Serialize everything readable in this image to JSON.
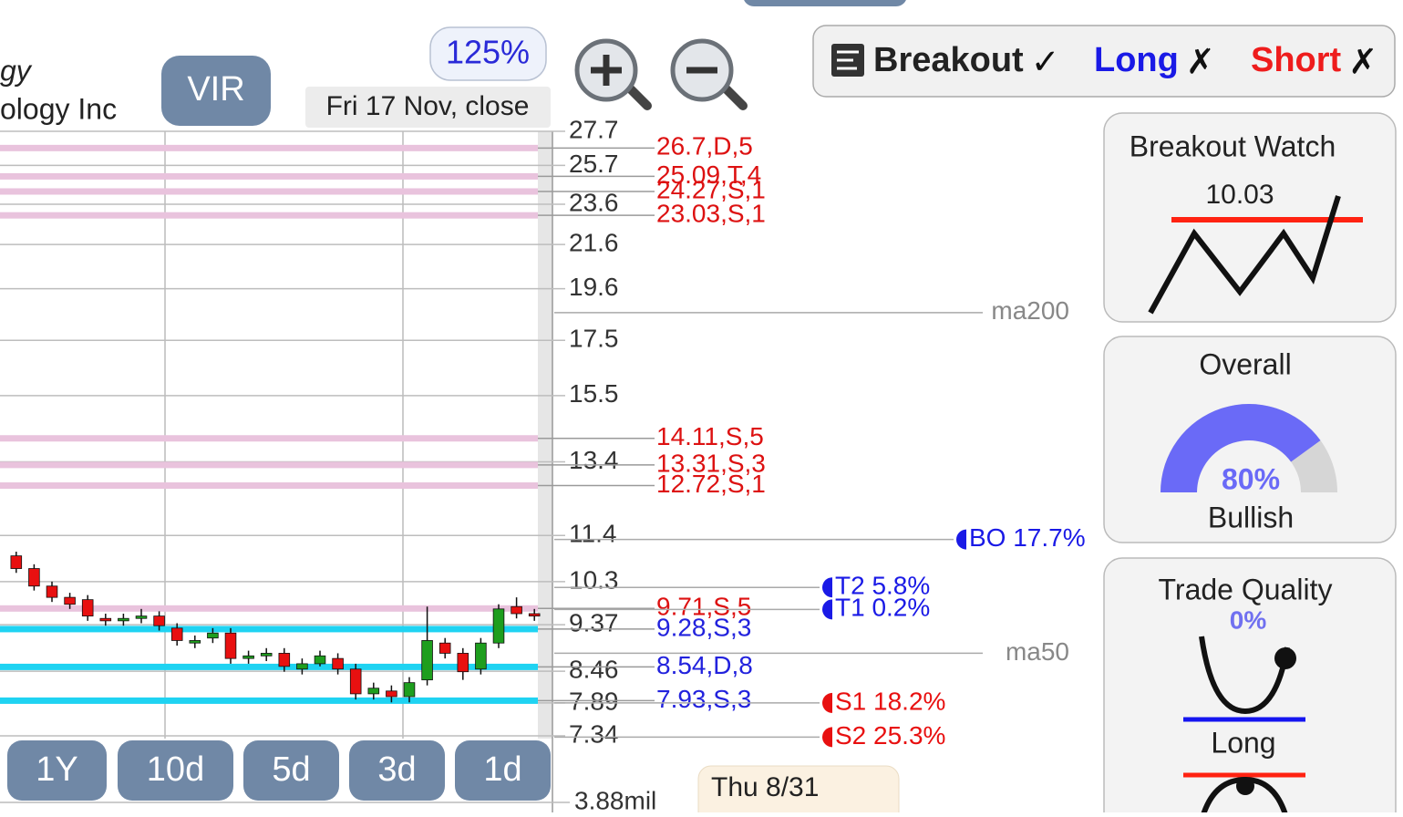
{
  "header": {
    "title_fragments": [
      "gy",
      "ology Inc"
    ],
    "ticker": "VIR",
    "zoom": "125%",
    "date": "Fri 17 Nov, close"
  },
  "toolbar": [
    {
      "label": "Breakout",
      "state": "✓",
      "color": "#222222"
    },
    {
      "label": "Long",
      "state": "✗",
      "color": "#1a1ae6"
    },
    {
      "label": "Short",
      "state": "✗",
      "color": "#ee1c1c"
    }
  ],
  "chart_data": {
    "type": "candlestick",
    "log_scale": true,
    "ylim": [
      7.34,
      27.7
    ],
    "yticks": [
      27.7,
      25.7,
      23.6,
      21.6,
      19.6,
      17.5,
      15.5,
      13.4,
      11.4,
      10.3,
      9.37,
      8.46,
      7.89,
      7.34
    ],
    "grid": true,
    "up_color": "#1e9e1e",
    "down_color": "#e81010",
    "candles": {
      "open": [
        10.9,
        10.6,
        10.2,
        9.95,
        9.9,
        9.5,
        9.45,
        9.5,
        9.55,
        9.3,
        9.0,
        9.1,
        9.2,
        8.7,
        8.75,
        8.8,
        8.5,
        8.6,
        8.7,
        8.5,
        8.05,
        8.1,
        8.0,
        8.3,
        9.0,
        8.8,
        8.5,
        9.0,
        9.75,
        9.6
      ],
      "high": [
        11.0,
        10.7,
        10.3,
        10.05,
        10.0,
        9.6,
        9.6,
        9.7,
        9.65,
        9.4,
        9.15,
        9.3,
        9.3,
        8.85,
        8.9,
        8.9,
        8.7,
        8.85,
        8.8,
        8.6,
        8.25,
        8.2,
        8.35,
        9.75,
        9.1,
        8.9,
        9.1,
        9.8,
        9.95,
        9.7
      ],
      "low": [
        10.5,
        10.1,
        9.85,
        9.7,
        9.45,
        9.35,
        9.35,
        9.4,
        9.25,
        8.95,
        8.9,
        9.0,
        8.6,
        8.6,
        8.65,
        8.45,
        8.4,
        8.55,
        8.4,
        7.95,
        7.95,
        7.9,
        7.9,
        8.2,
        8.7,
        8.3,
        8.4,
        8.9,
        9.5,
        9.45
      ],
      "close": [
        10.6,
        10.2,
        9.95,
        9.8,
        9.55,
        9.45,
        9.5,
        9.55,
        9.35,
        9.05,
        9.05,
        9.2,
        8.7,
        8.75,
        8.8,
        8.55,
        8.6,
        8.75,
        8.5,
        8.05,
        8.15,
        8.0,
        8.25,
        9.05,
        8.8,
        8.45,
        9.0,
        9.7,
        9.6,
        9.55
      ]
    },
    "level_groups": [
      {
        "label_color": "#dd1111",
        "band_color": "#e9c3dd",
        "items": [
          {
            "value": 26.7,
            "label": "26.7,D,5"
          },
          {
            "value": 25.09,
            "label": "25.09,T,4"
          },
          {
            "value": 24.27,
            "label": "24.27,S,1"
          },
          {
            "value": 23.03,
            "label": "23.03,S,1"
          },
          {
            "value": 14.11,
            "label": "14.11,S,5"
          },
          {
            "value": 13.31,
            "label": "13.31,S,3"
          },
          {
            "value": 12.72,
            "label": "12.72,S,1"
          },
          {
            "value": 9.71,
            "label": "9.71,S,5"
          }
        ]
      },
      {
        "label_color": "#2222dd",
        "band_color": "#1fd3f2",
        "items": [
          {
            "value": 9.28,
            "label": "9.28,S,3"
          },
          {
            "value": 8.54,
            "label": "8.54,D,8"
          },
          {
            "value": 7.93,
            "label": "7.93,S,3"
          }
        ]
      }
    ],
    "breakout": {
      "value": 11.3,
      "label": "BO 17.7%",
      "color": "#1a1ae6"
    },
    "targets": [
      {
        "value": 10.17,
        "label": "T2 5.8%",
        "color": "#1a1ae6"
      },
      {
        "value": 9.69,
        "label": "T1 0.2%",
        "color": "#1a1ae6"
      },
      {
        "value": 7.89,
        "label": "S1 18.2%",
        "color": "#e81010"
      },
      {
        "value": 7.32,
        "label": "S2 25.3%",
        "color": "#e81010"
      }
    ],
    "moving_averages": [
      {
        "name": "ma200",
        "value": 18.6
      },
      {
        "name": "ma50",
        "value": 8.8
      }
    ],
    "volume_label": "3.88mil"
  },
  "periods": [
    "1Y",
    "10d",
    "5d",
    "3d",
    "1d"
  ],
  "tooltip": "Thu 8/31",
  "panels": {
    "breakout_watch": {
      "title": "Breakout Watch",
      "value": "10.03"
    },
    "overall": {
      "title": "Overall",
      "value": 80,
      "value_label": "80%",
      "rating": "Bullish",
      "color": "#6a6af7"
    },
    "trade_quality": {
      "title": "Trade Quality",
      "value_label": "0%",
      "rating": "Long"
    }
  }
}
